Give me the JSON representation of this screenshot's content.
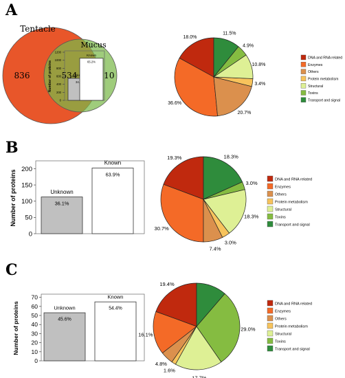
{
  "colors": {
    "dna": "#c0290e",
    "enzymes": "#f46a27",
    "others": "#db904d",
    "protein_metabolism": "#f7c35c",
    "structural": "#def095",
    "toxins": "#85bc41",
    "transport": "#2f8c3c",
    "unknown_bar": "#c0c0c0",
    "known_bar": "#ffffff",
    "venn_tentacle": "#e8562a",
    "venn_mucus": "#7ab84a",
    "venn_overlap": "#7b8a31"
  },
  "legend": [
    {
      "key": "dna",
      "label": "DNA and RNA related"
    },
    {
      "key": "enzymes",
      "label": "Enzymes"
    },
    {
      "key": "others",
      "label": "Others"
    },
    {
      "key": "protein_metabolism",
      "label": "Protein metabolism"
    },
    {
      "key": "structural",
      "label": "Structural"
    },
    {
      "key": "toxins",
      "label": "Toxins"
    },
    {
      "key": "transport",
      "label": "Transport and signal"
    }
  ],
  "panels": {
    "a": {
      "letter": "A",
      "venn": {
        "left_label": "Tentacle",
        "right_label": "Mucus",
        "left_only": "836",
        "overlap": "534",
        "right_only": "210"
      }
    },
    "b": {
      "letter": "B"
    },
    "c": {
      "letter": "C"
    }
  },
  "chart_data": [
    {
      "panel": "A",
      "type": "bar",
      "categories": [
        "Unknown",
        "Known"
      ],
      "values": [
        550,
        1050
      ],
      "data_labels": [
        "34.8%",
        "65.2%"
      ],
      "ylabel": "Number of proteins",
      "yticks": [
        0,
        200,
        400,
        600,
        800,
        1000,
        1200
      ],
      "ylim": [
        0,
        1200
      ]
    },
    {
      "panel": "A",
      "type": "pie",
      "slices": [
        {
          "key": "dna",
          "value": 18.0,
          "label": "18.0%"
        },
        {
          "key": "enzymes",
          "value": 36.6,
          "label": "36.6%"
        },
        {
          "key": "others",
          "value": 20.7,
          "label": "20.7%"
        },
        {
          "key": "protein_metabolism",
          "value": 3.4,
          "label": "3.4%"
        },
        {
          "key": "structural",
          "value": 10.8,
          "label": "10.8%"
        },
        {
          "key": "toxins",
          "value": 4.9,
          "label": "4.9%"
        },
        {
          "key": "transport",
          "value": 11.5,
          "label": "11.5%"
        }
      ],
      "legend_position": "right"
    },
    {
      "panel": "B",
      "type": "bar",
      "categories": [
        "Unknown",
        "Known"
      ],
      "values": [
        113,
        202
      ],
      "data_labels": [
        "36.1%",
        "63.9%"
      ],
      "ylabel": "Number of proteins",
      "yticks": [
        0,
        50,
        100,
        150,
        200
      ],
      "ylim": [
        0,
        220
      ]
    },
    {
      "panel": "B",
      "type": "pie",
      "slices": [
        {
          "key": "dna",
          "value": 19.3,
          "label": "19.3%"
        },
        {
          "key": "enzymes",
          "value": 30.7,
          "label": "30.7%"
        },
        {
          "key": "others",
          "value": 7.4,
          "label": "7.4%"
        },
        {
          "key": "protein_metabolism",
          "value": 3.0,
          "label": "3.0%"
        },
        {
          "key": "structural",
          "value": 18.3,
          "label": "18.3%"
        },
        {
          "key": "toxins",
          "value": 3.0,
          "label": "3.0%"
        },
        {
          "key": "transport",
          "value": 18.3,
          "label": "18.3%"
        }
      ],
      "legend_position": "right"
    },
    {
      "panel": "C",
      "type": "bar",
      "categories": [
        "Unknown",
        "Known"
      ],
      "values": [
        53,
        65
      ],
      "data_labels": [
        "45.6%",
        "54.4%"
      ],
      "ylabel": "Number of proteins",
      "yticks": [
        0,
        10,
        20,
        30,
        40,
        50,
        60,
        70
      ],
      "ylim": [
        0,
        72
      ]
    },
    {
      "panel": "C",
      "type": "pie",
      "slices": [
        {
          "key": "dna",
          "value": 19.4,
          "label": "19.4%"
        },
        {
          "key": "enzymes",
          "value": 16.1,
          "label": "16.1%"
        },
        {
          "key": "others",
          "value": 4.8,
          "label": "4.8%"
        },
        {
          "key": "protein_metabolism",
          "value": 1.6,
          "label": "1.6%"
        },
        {
          "key": "structural",
          "value": 17.7,
          "label": "17.7%"
        },
        {
          "key": "toxins",
          "value": 29.0,
          "label": "29.0%"
        },
        {
          "key": "transport",
          "value": 11.3,
          "label": ""
        }
      ],
      "legend_position": "right"
    }
  ]
}
